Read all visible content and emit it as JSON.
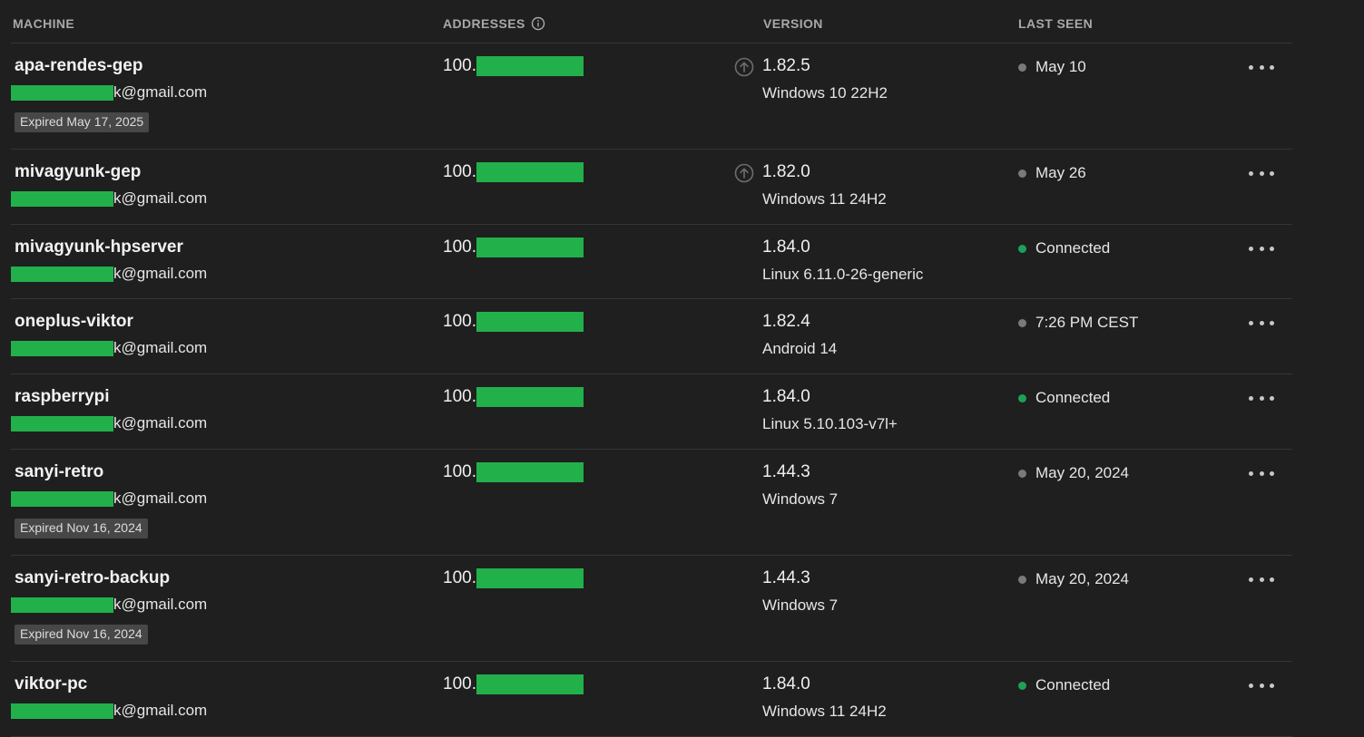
{
  "header": {
    "machine": "MACHINE",
    "addresses": "ADDRESSES",
    "version": "VERSION",
    "last_seen": "LAST SEEN"
  },
  "colors": {
    "online": "#1ea05a",
    "offline": "#7a7a7a",
    "redaction": "#22b04b"
  },
  "machines": [
    {
      "name": "apa-rendes-gep",
      "email_suffix": "k@gmail.com",
      "expired": "Expired May 17, 2025",
      "address_prefix": "100.",
      "update_available": true,
      "version": "1.82.5",
      "os": "Windows 10 22H2",
      "status": "offline",
      "last_seen": "May 10"
    },
    {
      "name": "mivagyunk-gep",
      "email_suffix": "k@gmail.com",
      "expired": "",
      "address_prefix": "100.",
      "update_available": true,
      "version": "1.82.0",
      "os": "Windows 11 24H2",
      "status": "offline",
      "last_seen": "May 26"
    },
    {
      "name": "mivagyunk-hpserver",
      "email_suffix": "k@gmail.com",
      "expired": "",
      "address_prefix": "100.",
      "update_available": false,
      "version": "1.84.0",
      "os": "Linux 6.11.0-26-generic",
      "status": "online",
      "last_seen": "Connected"
    },
    {
      "name": "oneplus-viktor",
      "email_suffix": "k@gmail.com",
      "expired": "",
      "address_prefix": "100.",
      "update_available": false,
      "version": "1.82.4",
      "os": "Android 14",
      "status": "offline",
      "last_seen": "7:26 PM CEST"
    },
    {
      "name": "raspberrypi",
      "email_suffix": "k@gmail.com",
      "expired": "",
      "address_prefix": "100.",
      "update_available": false,
      "version": "1.84.0",
      "os": "Linux 5.10.103-v7l+",
      "status": "online",
      "last_seen": "Connected"
    },
    {
      "name": "sanyi-retro",
      "email_suffix": "k@gmail.com",
      "expired": "Expired Nov 16, 2024",
      "address_prefix": "100.",
      "update_available": false,
      "version": "1.44.3",
      "os": "Windows 7",
      "status": "offline",
      "last_seen": "May 20, 2024"
    },
    {
      "name": "sanyi-retro-backup",
      "email_suffix": "k@gmail.com",
      "expired": "Expired Nov 16, 2024",
      "address_prefix": "100.",
      "update_available": false,
      "version": "1.44.3",
      "os": "Windows 7",
      "status": "offline",
      "last_seen": "May 20, 2024"
    },
    {
      "name": "viktor-pc",
      "email_suffix": "k@gmail.com",
      "expired": "",
      "address_prefix": "100.",
      "update_available": false,
      "version": "1.84.0",
      "os": "Windows 11 24H2",
      "status": "online",
      "last_seen": "Connected"
    }
  ]
}
